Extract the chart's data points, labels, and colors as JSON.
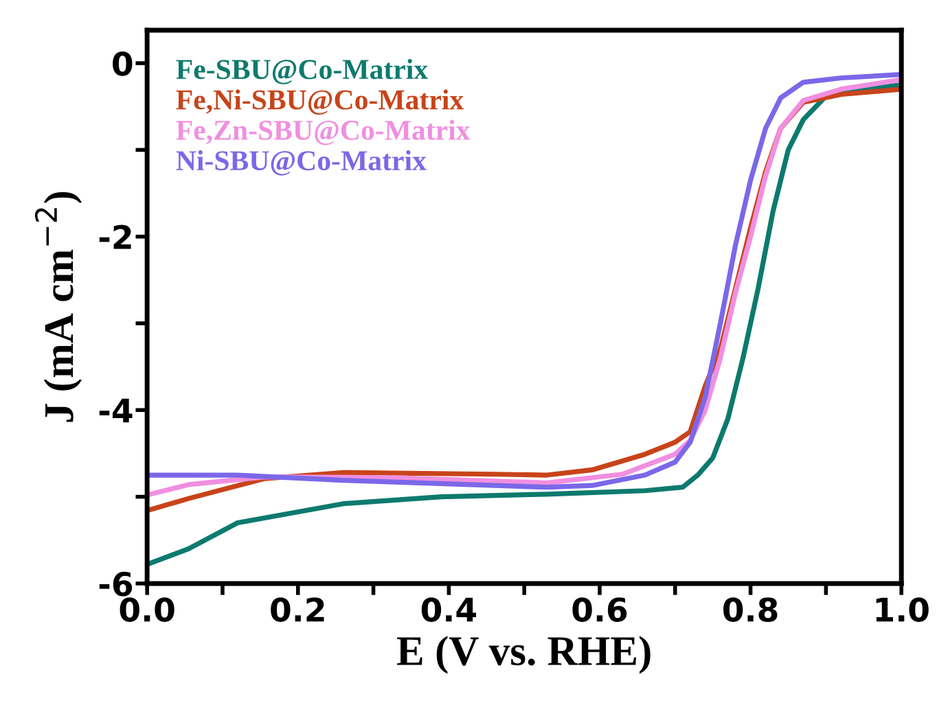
{
  "chart_data": {
    "type": "line",
    "xlabel": "E (V vs. RHE)",
    "ylabel": "J (mA cm$^{−2}$)",
    "xlim": [
      0,
      1.0
    ],
    "ylim": [
      -6,
      0.38
    ],
    "xticks": [
      {
        "value": 0,
        "label": "0.0"
      },
      {
        "value": 0.1,
        "label": null
      },
      {
        "value": 0.2,
        "label": "0.2"
      },
      {
        "value": 0.3,
        "label": null
      },
      {
        "value": 0.4,
        "label": "0.4"
      },
      {
        "value": 0.5,
        "label": null
      },
      {
        "value": 0.6,
        "label": "0.6"
      },
      {
        "value": 0.7,
        "label": null
      },
      {
        "value": 0.8,
        "label": "0.8"
      },
      {
        "value": 0.9,
        "label": null
      },
      {
        "value": 1.0,
        "label": "1.0"
      }
    ],
    "yticks": [
      -6,
      {
        "value": -5,
        "label": null
      },
      -4,
      {
        "value": -3,
        "label": null
      },
      -2,
      {
        "value": -1,
        "label": null
      },
      0
    ],
    "grid": false,
    "legend": "top left",
    "marker": "none",
    "line_style": "solid",
    "series": [
      {
        "name": "Fe-SBU@Co-Matrix",
        "color": "#0d7a6e",
        "x": [
          0,
          0.055,
          0.12,
          0.26,
          0.39,
          0.53,
          0.66,
          0.71,
          0.73,
          0.75,
          0.77,
          0.79,
          0.81,
          0.83,
          0.85,
          0.87,
          0.9,
          0.95,
          1.0
        ],
        "values": [
          -5.78,
          -5.6,
          -5.3,
          -5.08,
          -5.0,
          -4.97,
          -4.93,
          -4.89,
          -4.75,
          -4.55,
          -4.1,
          -3.4,
          -2.6,
          -1.7,
          -1.0,
          -0.65,
          -0.38,
          -0.3,
          -0.25
        ]
      },
      {
        "name": "Fe,Ni-SBU@Co-Matrix",
        "color": "#c8441a",
        "x": [
          0,
          0.055,
          0.156,
          0.26,
          0.46,
          0.53,
          0.59,
          0.66,
          0.7,
          0.72,
          0.74,
          0.76,
          0.78,
          0.8,
          0.82,
          0.84,
          0.87,
          0.92,
          1.0
        ],
        "values": [
          -5.16,
          -5.02,
          -4.79,
          -4.72,
          -4.74,
          -4.75,
          -4.69,
          -4.51,
          -4.37,
          -4.25,
          -3.72,
          -3.3,
          -2.6,
          -1.9,
          -1.25,
          -0.75,
          -0.45,
          -0.36,
          -0.3
        ]
      },
      {
        "name": "Fe,Zn-SBU@Co-Matrix",
        "color": "#f08fe0",
        "x": [
          0,
          0.055,
          0.156,
          0.33,
          0.53,
          0.63,
          0.7,
          0.72,
          0.74,
          0.76,
          0.78,
          0.8,
          0.82,
          0.84,
          0.87,
          0.92,
          1.0
        ],
        "values": [
          -4.98,
          -4.86,
          -4.77,
          -4.78,
          -4.84,
          -4.74,
          -4.51,
          -4.35,
          -4.0,
          -3.4,
          -2.65,
          -2.0,
          -1.3,
          -0.75,
          -0.43,
          -0.3,
          -0.19
        ]
      },
      {
        "name": "Ni-SBU@Co-Matrix",
        "color": "#7b68e8",
        "x": [
          0,
          0.12,
          0.26,
          0.53,
          0.59,
          0.66,
          0.7,
          0.72,
          0.74,
          0.76,
          0.78,
          0.8,
          0.82,
          0.84,
          0.87,
          0.92,
          1.0
        ],
        "values": [
          -4.75,
          -4.75,
          -4.81,
          -4.89,
          -4.87,
          -4.75,
          -4.6,
          -4.37,
          -3.85,
          -3.0,
          -2.1,
          -1.35,
          -0.75,
          -0.4,
          -0.22,
          -0.17,
          -0.13
        ]
      }
    ]
  }
}
